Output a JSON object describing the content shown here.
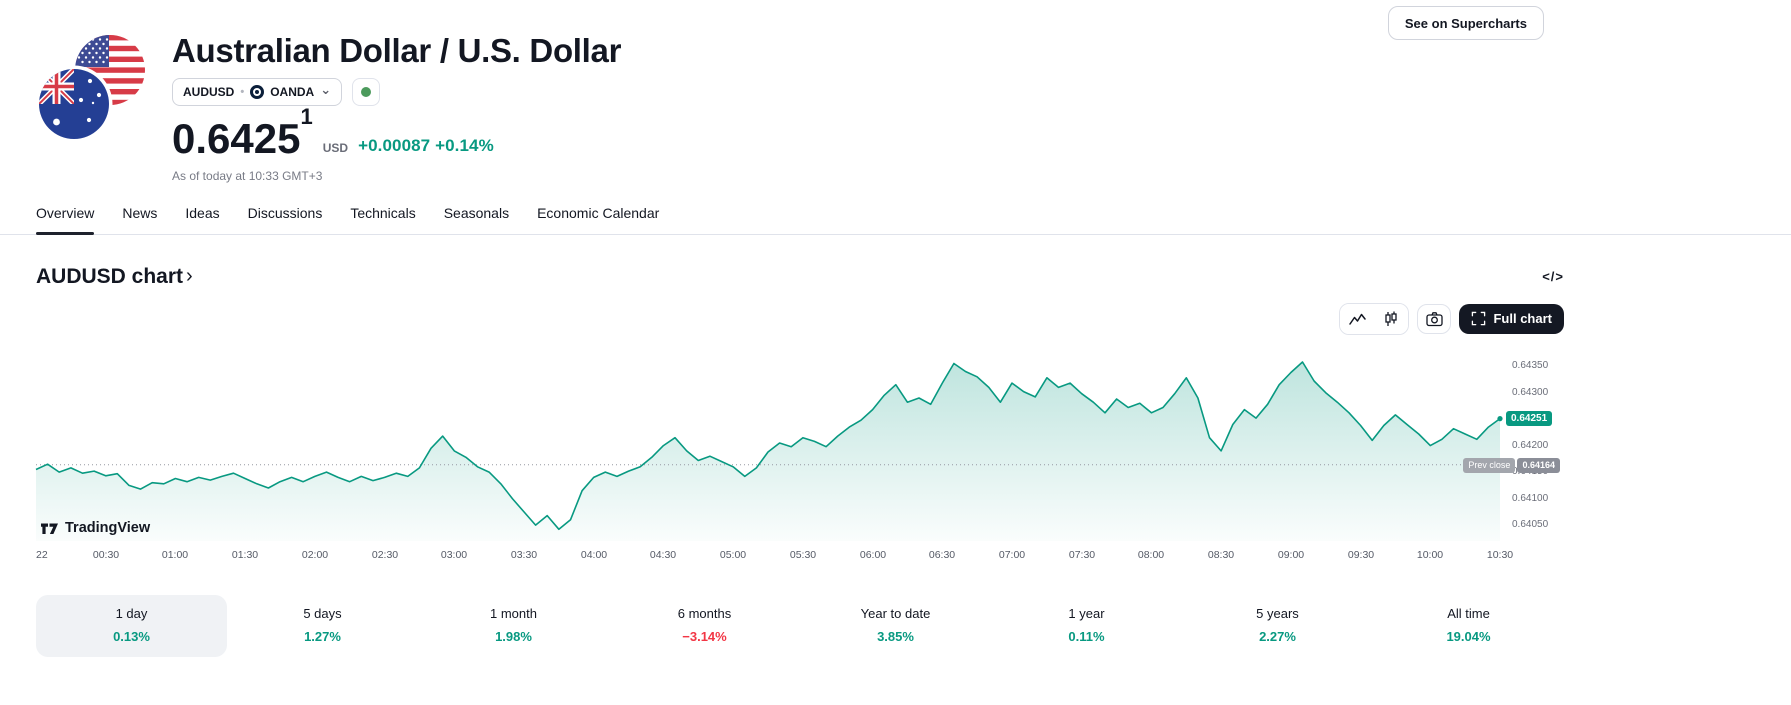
{
  "header": {
    "title": "Australian Dollar / U.S. Dollar",
    "symbol": "AUDUSD",
    "exchange": "OANDA",
    "market_status": "open",
    "price": "0.6425",
    "price_superscript": "1",
    "currency": "USD",
    "change_absolute": "+0.00087",
    "change_percent": "+0.14%",
    "as_of": "As of today at 10:33 GMT+3",
    "supercharts_button": "See on Supercharts"
  },
  "glyphs": {
    "separator": "•",
    "dropdown_chevron": "⌄",
    "section_chevron": "›",
    "embed_code": "</>"
  },
  "tabs": [
    {
      "label": "Overview",
      "active": true
    },
    {
      "label": "News",
      "active": false
    },
    {
      "label": "Ideas",
      "active": false
    },
    {
      "label": "Discussions",
      "active": false
    },
    {
      "label": "Technicals",
      "active": false
    },
    {
      "label": "Seasonals",
      "active": false
    },
    {
      "label": "Economic Calendar",
      "active": false
    }
  ],
  "chart_section": {
    "title": "AUDUSD chart",
    "full_chart_button": "Full chart",
    "watermark": "TradingView"
  },
  "chart_data": {
    "type": "area",
    "symbol": "AUDUSD",
    "line_color": "#089981",
    "minutes_per_point": 5,
    "x_labels": [
      "22",
      "00:30",
      "01:00",
      "01:30",
      "02:00",
      "02:30",
      "03:00",
      "03:30",
      "04:00",
      "04:30",
      "05:00",
      "05:30",
      "06:00",
      "06:30",
      "07:00",
      "07:30",
      "08:00",
      "08:30",
      "09:00",
      "09:30",
      "10:00",
      "10:30"
    ],
    "y_ticks": [
      0.6435,
      0.643,
      0.6425,
      0.642,
      0.6415,
      0.641,
      0.6405
    ],
    "y_tick_labels": [
      "0.64350",
      "0.64300",
      "0.64250",
      "0.64200",
      "0.64150",
      "0.64100",
      "0.64050"
    ],
    "ylim": [
      0.6402,
      0.6439
    ],
    "values": [
      0.64155,
      0.64165,
      0.6415,
      0.64158,
      0.64148,
      0.64152,
      0.64143,
      0.64147,
      0.64125,
      0.64118,
      0.6413,
      0.64128,
      0.64138,
      0.64132,
      0.6414,
      0.64135,
      0.64142,
      0.64148,
      0.64138,
      0.64128,
      0.6412,
      0.64132,
      0.6414,
      0.64132,
      0.64142,
      0.6415,
      0.6414,
      0.64132,
      0.64142,
      0.64134,
      0.6414,
      0.64148,
      0.64142,
      0.64158,
      0.64195,
      0.64218,
      0.6419,
      0.64178,
      0.6416,
      0.6415,
      0.64128,
      0.641,
      0.64075,
      0.6405,
      0.64068,
      0.64042,
      0.6406,
      0.64115,
      0.6414,
      0.6415,
      0.64142,
      0.64152,
      0.6416,
      0.64178,
      0.642,
      0.64215,
      0.6419,
      0.64172,
      0.6418,
      0.6417,
      0.6416,
      0.64142,
      0.64158,
      0.64188,
      0.64205,
      0.64198,
      0.64215,
      0.64208,
      0.64198,
      0.64218,
      0.64235,
      0.64248,
      0.64268,
      0.64295,
      0.64315,
      0.64282,
      0.6429,
      0.64278,
      0.64318,
      0.64355,
      0.6434,
      0.6433,
      0.6431,
      0.64282,
      0.64318,
      0.64302,
      0.64292,
      0.64328,
      0.6431,
      0.64318,
      0.64298,
      0.64282,
      0.64262,
      0.64288,
      0.64272,
      0.6428,
      0.64262,
      0.64272,
      0.64298,
      0.64328,
      0.6429,
      0.64215,
      0.6419,
      0.6424,
      0.64268,
      0.64252,
      0.64278,
      0.64315,
      0.64338,
      0.64358,
      0.64322,
      0.643,
      0.64282,
      0.64262,
      0.64238,
      0.6421,
      0.64238,
      0.64258,
      0.6424,
      0.64222,
      0.642,
      0.64212,
      0.64232,
      0.64222,
      0.64212,
      0.64235,
      0.64251
    ],
    "last_price": 0.64251,
    "last_price_label": "0.64251",
    "prev_close": {
      "label": "Prev close",
      "value": 0.64164,
      "value_label": "0.64164"
    }
  },
  "periods": [
    {
      "label": "1 day",
      "value": "0.13%",
      "direction": "up",
      "selected": true
    },
    {
      "label": "5 days",
      "value": "1.27%",
      "direction": "up",
      "selected": false
    },
    {
      "label": "1 month",
      "value": "1.98%",
      "direction": "up",
      "selected": false
    },
    {
      "label": "6 months",
      "value": "−3.14%",
      "direction": "down",
      "selected": false
    },
    {
      "label": "Year to date",
      "value": "3.85%",
      "direction": "up",
      "selected": false
    },
    {
      "label": "1 year",
      "value": "0.11%",
      "direction": "up",
      "selected": false
    },
    {
      "label": "5 years",
      "value": "2.27%",
      "direction": "up",
      "selected": false
    },
    {
      "label": "All time",
      "value": "19.04%",
      "direction": "up",
      "selected": false
    }
  ],
  "colors": {
    "up": "#089981",
    "down": "#f23645",
    "last_price_badge": "#089981",
    "market_open_dot": "#4c9a5c"
  }
}
